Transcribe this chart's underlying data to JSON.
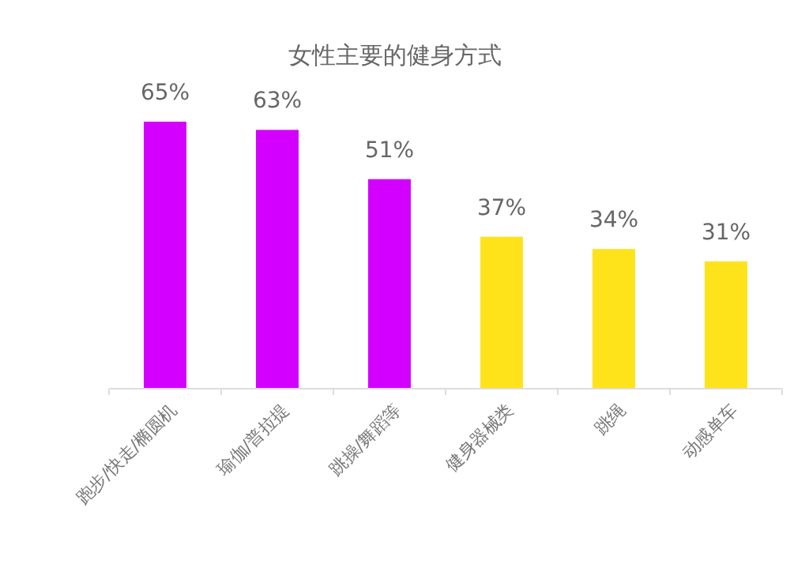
{
  "chart_data": {
    "type": "bar",
    "title": "女性主要的健身方式",
    "categories": [
      "跑步/快走/椭圆机",
      "瑜伽/普拉提",
      "跳操/舞蹈等",
      "健身器械类",
      "跳绳",
      "动感单车"
    ],
    "values": [
      65,
      63,
      51,
      37,
      34,
      31
    ],
    "colors": [
      "#d400ff",
      "#d400ff",
      "#d400ff",
      "#ffe31a",
      "#ffe31a",
      "#ffe31a"
    ],
    "value_labels": [
      "65%",
      "63%",
      "51%",
      "37%",
      "34%",
      "31%"
    ],
    "tick_labels": "x"
  }
}
